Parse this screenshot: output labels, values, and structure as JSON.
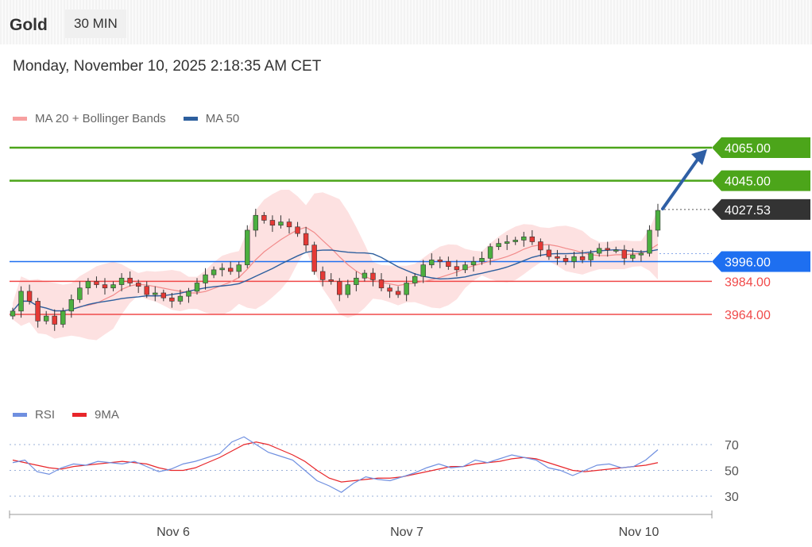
{
  "header": {
    "instrument": "Gold",
    "timeframe": "30 MIN"
  },
  "timestamp": "Monday, November 10, 2025 2:18:35 AM CET",
  "legend_main": [
    {
      "label": "MA 20 + Bollinger Bands",
      "color": "#f28b8b"
    },
    {
      "label": "MA 50",
      "color": "#2d5f9e"
    }
  ],
  "legend_rsi": [
    {
      "label": "RSI",
      "color": "#6f8fe0"
    },
    {
      "label": "9MA",
      "color": "#e8262a"
    }
  ],
  "chart_data": {
    "type": "candlestick",
    "ylim": [
      3925,
      4085
    ],
    "x_ticks": [
      "Nov 6",
      "Nov 7",
      "Nov 10"
    ],
    "levels": [
      {
        "value": 4065.0,
        "label": "4065.00",
        "kind": "resistance",
        "color": "#4ca51a"
      },
      {
        "value": 4045.0,
        "label": "4045.00",
        "kind": "resistance",
        "color": "#4ca51a"
      },
      {
        "value": 4027.53,
        "label": "4027.53",
        "kind": "current-price",
        "color": "#333333"
      },
      {
        "value": 3996.0,
        "label": "3996.00",
        "kind": "pivot",
        "color": "#1e6ff0"
      },
      {
        "value": 3984.0,
        "label": "3984.00",
        "kind": "support",
        "color": "#f04a4a"
      },
      {
        "value": 3964.0,
        "label": "3964.00",
        "kind": "support",
        "color": "#f04a4a"
      }
    ],
    "price": [
      3966,
      3978,
      3972,
      3960,
      3963,
      3958,
      3966,
      3973,
      3980,
      3984,
      3982,
      3980,
      3982,
      3986,
      3983,
      3981,
      3976,
      3977,
      3974,
      3972,
      3975,
      3978,
      3983,
      3988,
      3991,
      3992,
      3990,
      3994,
      4015,
      4024,
      4021,
      4018,
      4020,
      4017,
      4013,
      4006,
      3990,
      3985,
      3984,
      3976,
      3982,
      3986,
      3989,
      3985,
      3980,
      3978,
      3976,
      3983,
      3987,
      3994,
      3997,
      3996,
      3993,
      3991,
      3994,
      3996,
      3998,
      4005,
      4007,
      4008,
      4009,
      4011,
      4008,
      4003,
      3999,
      3998,
      3996,
      3999,
      3997,
      4001,
      4004,
      4003,
      4003,
      3998,
      4000,
      4001,
      4015,
      4027
    ],
    "rsi": {
      "ylim": [
        20,
        85
      ],
      "levels": [
        70,
        50,
        30
      ],
      "rsi": [
        56,
        58,
        49,
        47,
        52,
        55,
        54,
        57,
        56,
        55,
        57,
        53,
        49,
        51,
        55,
        57,
        60,
        63,
        72,
        76,
        70,
        64,
        61,
        58,
        50,
        42,
        38,
        33,
        40,
        45,
        43,
        42,
        45,
        48,
        52,
        55,
        52,
        53,
        58,
        56,
        59,
        62,
        60,
        58,
        52,
        50,
        46,
        50,
        54,
        55,
        52,
        53,
        58,
        66
      ],
      "ma9": [
        58,
        56,
        54,
        52,
        51,
        53,
        54,
        55,
        56,
        57,
        56,
        55,
        52,
        50,
        50,
        52,
        56,
        60,
        65,
        70,
        72,
        70,
        66,
        62,
        57,
        50,
        44,
        41,
        42,
        43,
        44,
        44,
        45,
        47,
        49,
        51,
        53,
        53,
        55,
        56,
        57,
        59,
        60,
        59,
        56,
        53,
        50,
        49,
        50,
        51,
        52,
        53,
        54,
        56
      ]
    }
  }
}
